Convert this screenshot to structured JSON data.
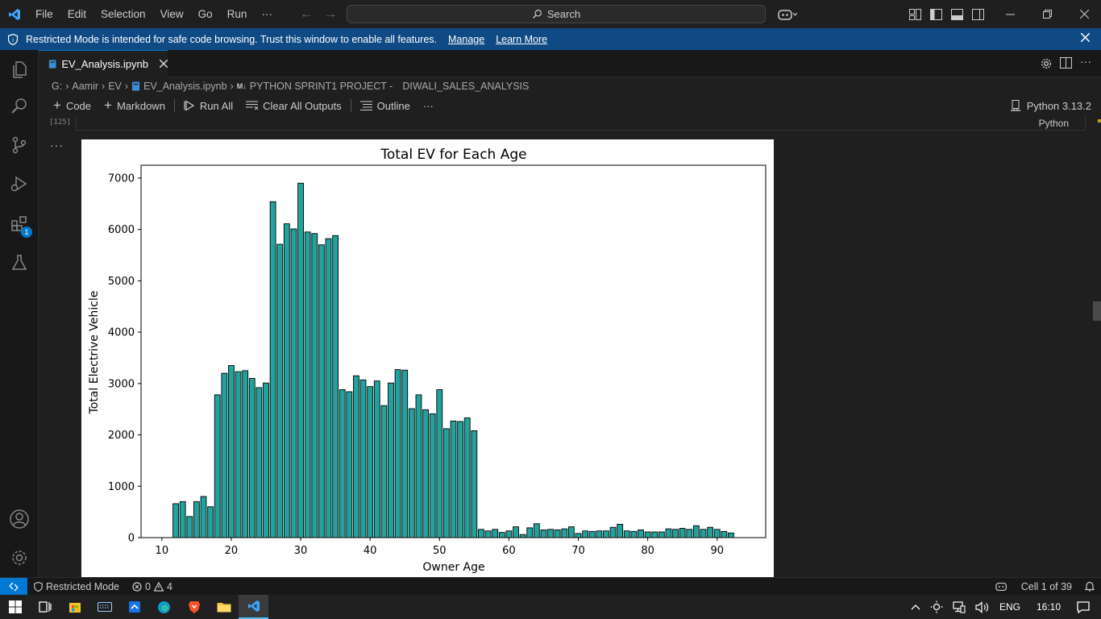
{
  "titlebar": {
    "menu": [
      "File",
      "Edit",
      "Selection",
      "View",
      "Go",
      "Run",
      "···"
    ],
    "search_label": "Search"
  },
  "banner": {
    "message": "Restricted Mode is intended for safe code browsing. Trust this window to enable all features.",
    "manage_link": "Manage",
    "learn_more_link": "Learn More"
  },
  "activity_bar": {
    "extensions_badge": "1"
  },
  "tab": {
    "filename": "EV_Analysis.ipynb"
  },
  "breadcrumb": {
    "drive": "G:",
    "folder1": "Aamir",
    "folder2": "EV",
    "file": "EV_Analysis.ipynb",
    "md_icon": "M↓",
    "section": "PYTHON SPRINT1 PROJECT -",
    "subsection": "DIWALI_SALES_ANALYSIS"
  },
  "notebook_toolbar": {
    "code": "Code",
    "markdown": "Markdown",
    "run_all": "Run All",
    "clear_all_outputs": "Clear All Outputs",
    "outline": "Outline",
    "more": "···",
    "kernel": "Python 3.13.2"
  },
  "cell": {
    "execution_count": "[125]",
    "language": "Python",
    "output_more": "···"
  },
  "chart_data": {
    "type": "bar",
    "title": "Total EV for Each Age",
    "xlabel": "Owner Age",
    "ylabel": "Total Electrive Vehicle",
    "xlim": [
      7,
      97
    ],
    "ylim": [
      0,
      7250
    ],
    "xticks": [
      10,
      20,
      30,
      40,
      50,
      60,
      70,
      80,
      90
    ],
    "yticks": [
      0,
      1000,
      2000,
      3000,
      4000,
      5000,
      6000,
      7000
    ],
    "bar_color": "#20a39e",
    "edge_color": "#000000",
    "grid": false,
    "x": [
      12,
      13,
      14,
      15,
      16,
      17,
      18,
      19,
      20,
      21,
      22,
      23,
      24,
      25,
      26,
      27,
      28,
      29,
      30,
      31,
      32,
      33,
      34,
      35,
      36,
      37,
      38,
      39,
      40,
      41,
      42,
      43,
      44,
      45,
      46,
      47,
      48,
      49,
      50,
      51,
      52,
      53,
      54,
      55,
      56,
      57,
      58,
      59,
      60,
      61,
      62,
      63,
      64,
      65,
      66,
      67,
      68,
      69,
      70,
      71,
      72,
      73,
      74,
      75,
      76,
      77,
      78,
      79,
      80,
      81,
      82,
      83,
      84,
      85,
      86,
      87,
      88,
      89,
      90,
      91,
      92
    ],
    "values": [
      660,
      700,
      410,
      700,
      800,
      600,
      2780,
      3200,
      3350,
      3230,
      3250,
      3100,
      2920,
      3010,
      6540,
      5710,
      6110,
      6010,
      6900,
      5950,
      5920,
      5700,
      5820,
      5880,
      2880,
      2840,
      3150,
      3070,
      2940,
      3050,
      2570,
      3010,
      3270,
      3260,
      2510,
      2780,
      2490,
      2410,
      2880,
      2120,
      2270,
      2260,
      2330,
      2080,
      160,
      130,
      160,
      100,
      130,
      210,
      60,
      190,
      270,
      150,
      160,
      150,
      170,
      210,
      80,
      130,
      120,
      130,
      130,
      200,
      260,
      130,
      120,
      150,
      110,
      110,
      110,
      170,
      160,
      180,
      160,
      230,
      160,
      200,
      160,
      120,
      90
    ]
  },
  "statusbar": {
    "restricted_mode": "Restricted Mode",
    "errors": "0",
    "warnings": "4",
    "cell_info": "Cell 1 of 39"
  },
  "taskbar": {
    "language": "ENG",
    "time": "16:10"
  }
}
